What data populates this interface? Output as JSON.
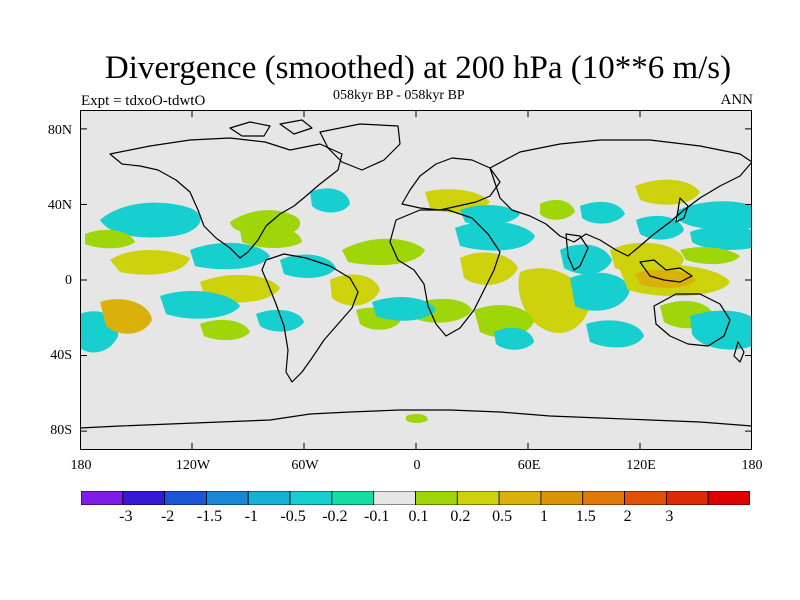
{
  "title": "Divergence (smoothed) at 200 hPa (10**6 m/s)",
  "subtitle_left": "Expt = tdxoO-tdwtO",
  "subtitle_center": "058kyr BP - 058kyr BP",
  "subtitle_right": "ANN",
  "map": {
    "projection": "cylindrical-equidistant",
    "lon_range": [
      -180,
      180
    ],
    "lat_range": [
      -90,
      90
    ],
    "background_color": "#e6e6e6",
    "coastline_color": "#000000",
    "lat_labels": [
      "80N",
      "40N",
      "0",
      "40S",
      "80S"
    ],
    "lon_labels": [
      "180",
      "120W",
      "60W",
      "0",
      "60E",
      "120E",
      "180"
    ]
  },
  "colorbar": {
    "colors": [
      "#7d1de6",
      "#3419d6",
      "#1b55d6",
      "#1b85d6",
      "#17b0d6",
      "#17cfcf",
      "#15dba4",
      "#e6e6e6",
      "#9fd60a",
      "#cdd20c",
      "#dab10a",
      "#db9407",
      "#e07a06",
      "#df5205",
      "#dd2a03",
      "#e00000"
    ],
    "labels": [
      "-3",
      "-2",
      "-1.5",
      "-1",
      "-0.5",
      "-0.2",
      "-0.1",
      "0.1",
      "0.2",
      "0.5",
      "1",
      "1.5",
      "2",
      "3"
    ]
  }
}
